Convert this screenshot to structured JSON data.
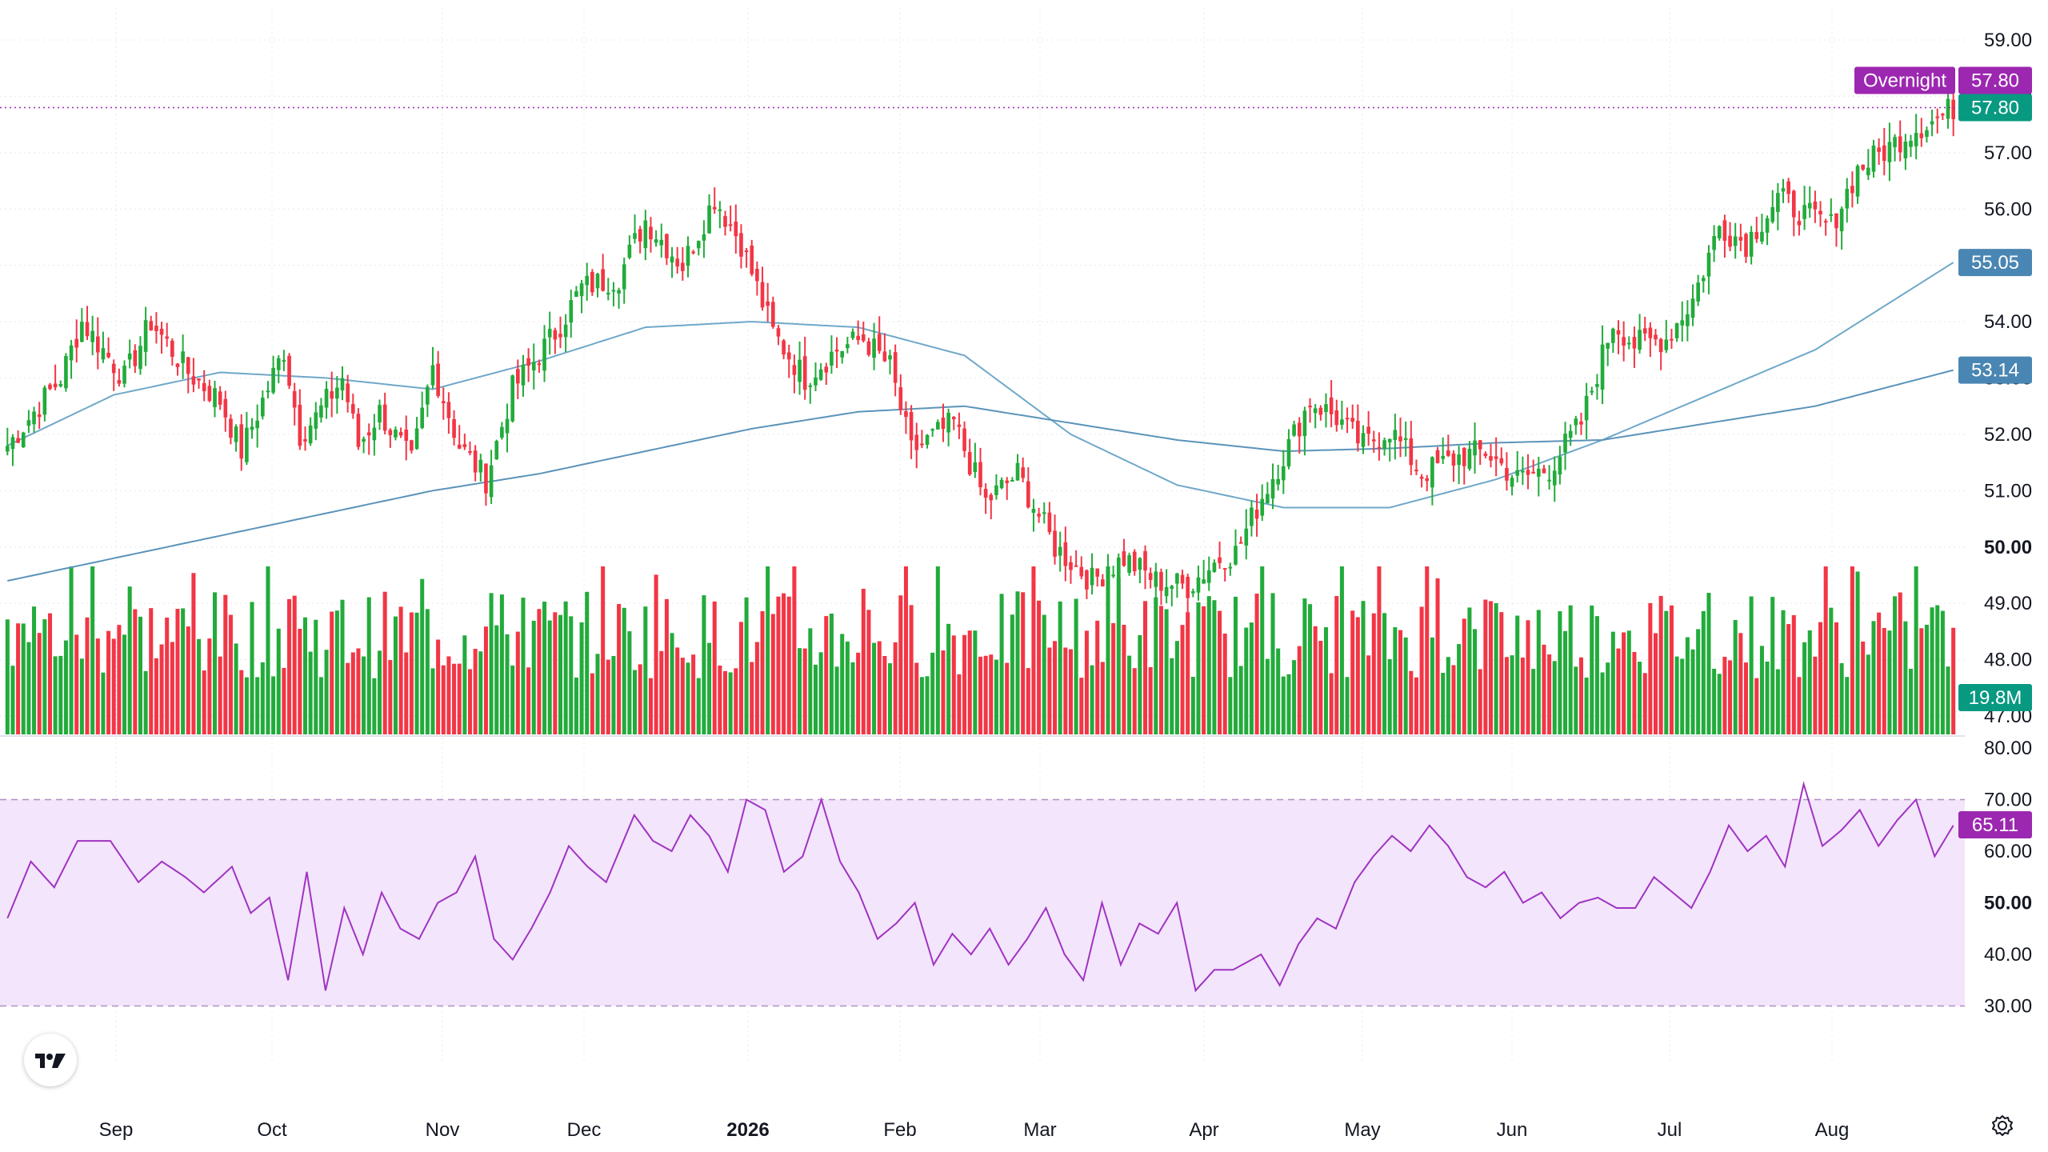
{
  "chart_data": {
    "type": "candlestick",
    "colors": {
      "up": "#22ab3b",
      "down": "#f23645",
      "ma_fast": "#6fa8c9",
      "ma_slow": "#5b93ba",
      "rsi_line": "#a033c2",
      "rsi_band": "#f3e5fb",
      "overnight_tag": "#9c27b0",
      "price_tag": "#089981",
      "ma_tag": "#4a86b3",
      "volume_tag": "#089981",
      "rsi_tag": "#9c27b0"
    },
    "price_axis": {
      "min": 47,
      "max": 59,
      "ticks": [
        "59.00",
        "58.00",
        "57.00",
        "56.00",
        "55.00",
        "54.00",
        "53.00",
        "52.00",
        "51.00",
        "50.00",
        "49.00",
        "48.00",
        "47.00"
      ]
    },
    "x_axis": {
      "labels": [
        {
          "text": "Sep",
          "bold": false
        },
        {
          "text": "Oct",
          "bold": false
        },
        {
          "text": "Nov",
          "bold": false
        },
        {
          "text": "Dec",
          "bold": false
        },
        {
          "text": "2026",
          "bold": true
        },
        {
          "text": "Feb",
          "bold": false
        },
        {
          "text": "Mar",
          "bold": false
        },
        {
          "text": "Apr",
          "bold": false
        },
        {
          "text": "May",
          "bold": false
        },
        {
          "text": "Jun",
          "bold": false
        },
        {
          "text": "Jul",
          "bold": false
        },
        {
          "text": "Aug",
          "bold": false
        }
      ]
    },
    "key_prices": [
      [
        0,
        51.8
      ],
      [
        10,
        53.0
      ],
      [
        14,
        54.0
      ],
      [
        22,
        53.0
      ],
      [
        27,
        54.0
      ],
      [
        34,
        53.1
      ],
      [
        40,
        52.6
      ],
      [
        44,
        51.7
      ],
      [
        52,
        53.5
      ],
      [
        55,
        52.0
      ],
      [
        58,
        52.3
      ],
      [
        63,
        53.0
      ],
      [
        66,
        51.8
      ],
      [
        70,
        52.4
      ],
      [
        76,
        51.5
      ],
      [
        80,
        53.2
      ],
      [
        85,
        51.8
      ],
      [
        90,
        51.2
      ],
      [
        95,
        52.8
      ],
      [
        103,
        53.8
      ],
      [
        108,
        54.6
      ],
      [
        115,
        54.8
      ],
      [
        120,
        55.8
      ],
      [
        127,
        55.0
      ],
      [
        133,
        56.2
      ],
      [
        138,
        55.4
      ],
      [
        144,
        53.8
      ],
      [
        150,
        53.0
      ],
      [
        156,
        53.5
      ],
      [
        161,
        53.7
      ],
      [
        166,
        53.2
      ],
      [
        170,
        51.7
      ],
      [
        178,
        52.2
      ],
      [
        184,
        50.8
      ],
      [
        190,
        51.3
      ],
      [
        197,
        50.0
      ],
      [
        204,
        49.4
      ],
      [
        210,
        49.8
      ],
      [
        216,
        49.4
      ],
      [
        222,
        49.3
      ],
      [
        228,
        49.8
      ],
      [
        231,
        49.9
      ],
      [
        236,
        50.9
      ],
      [
        241,
        51.8
      ],
      [
        245,
        52.6
      ],
      [
        250,
        52.3
      ],
      [
        255,
        51.8
      ],
      [
        260,
        52.1
      ],
      [
        266,
        51.3
      ],
      [
        273,
        51.6
      ],
      [
        278,
        51.7
      ],
      [
        284,
        51.2
      ],
      [
        290,
        51.4
      ],
      [
        296,
        52.2
      ],
      [
        302,
        54.0
      ],
      [
        306,
        53.6
      ],
      [
        312,
        53.7
      ],
      [
        317,
        54.4
      ],
      [
        322,
        55.7
      ],
      [
        327,
        55.4
      ],
      [
        333,
        56.2
      ],
      [
        338,
        55.9
      ],
      [
        343,
        55.7
      ],
      [
        348,
        56.7
      ],
      [
        354,
        57.1
      ],
      [
        358,
        57.4
      ],
      [
        363,
        57.6
      ],
      [
        366,
        57.8
      ]
    ],
    "series": [
      {
        "name": "",
        "kind": "moving_average_fast",
        "x": [
          0,
          20,
          40,
          60,
          80,
          100,
          120,
          140,
          160,
          180,
          200,
          220,
          240,
          260,
          280,
          300,
          320,
          340,
          366
        ],
        "y": [
          51.8,
          52.7,
          53.1,
          53.0,
          52.8,
          53.3,
          53.9,
          54.0,
          53.9,
          53.4,
          52.0,
          51.1,
          50.7,
          50.7,
          51.2,
          51.9,
          52.7,
          53.5,
          55.05
        ]
      },
      {
        "name": "",
        "kind": "moving_average_slow",
        "x": [
          0,
          20,
          40,
          60,
          80,
          100,
          120,
          140,
          160,
          180,
          200,
          220,
          240,
          260,
          280,
          300,
          320,
          340,
          366
        ],
        "y": [
          49.4,
          49.8,
          50.2,
          50.6,
          51.0,
          51.3,
          51.7,
          52.1,
          52.4,
          52.5,
          52.2,
          51.9,
          51.7,
          51.75,
          51.85,
          51.9,
          52.2,
          52.5,
          53.14
        ]
      }
    ],
    "volume": {
      "unit": "M",
      "max_bar_height_fraction_of_pane": 1,
      "last": "19.8M"
    },
    "rsi": {
      "min": 20,
      "max": 80,
      "upper_band": 70,
      "lower_band": 30,
      "ticks": [
        "80.00",
        "70.00",
        "60.00",
        "50.00",
        "40.00",
        "30.00"
      ],
      "key_values": [
        [
          0,
          47
        ],
        [
          5,
          58
        ],
        [
          10,
          53
        ],
        [
          15,
          62
        ],
        [
          22,
          62
        ],
        [
          28,
          54
        ],
        [
          33,
          58
        ],
        [
          38,
          55
        ],
        [
          42,
          52
        ],
        [
          48,
          57
        ],
        [
          52,
          48
        ],
        [
          56,
          51
        ],
        [
          60,
          35
        ],
        [
          64,
          56
        ],
        [
          68,
          33
        ],
        [
          72,
          49
        ],
        [
          76,
          40
        ],
        [
          80,
          52
        ],
        [
          84,
          45
        ],
        [
          88,
          43
        ],
        [
          92,
          50
        ],
        [
          96,
          52
        ],
        [
          100,
          59
        ],
        [
          104,
          43
        ],
        [
          108,
          39
        ],
        [
          112,
          45
        ],
        [
          116,
          52
        ],
        [
          120,
          61
        ],
        [
          124,
          57
        ],
        [
          128,
          54
        ],
        [
          134,
          67
        ],
        [
          138,
          62
        ],
        [
          142,
          60
        ],
        [
          146,
          67
        ],
        [
          150,
          63
        ],
        [
          154,
          56
        ],
        [
          158,
          70
        ],
        [
          162,
          68
        ],
        [
          166,
          56
        ],
        [
          170,
          59
        ],
        [
          174,
          70
        ],
        [
          178,
          58
        ],
        [
          182,
          52
        ],
        [
          186,
          43
        ],
        [
          190,
          46
        ],
        [
          194,
          50
        ],
        [
          198,
          38
        ],
        [
          202,
          44
        ],
        [
          206,
          40
        ],
        [
          210,
          45
        ],
        [
          214,
          38
        ],
        [
          218,
          43
        ],
        [
          222,
          49
        ],
        [
          226,
          40
        ],
        [
          230,
          35
        ],
        [
          234,
          50
        ],
        [
          238,
          38
        ],
        [
          242,
          46
        ],
        [
          246,
          44
        ],
        [
          250,
          50
        ],
        [
          254,
          33
        ],
        [
          258,
          37
        ],
        [
          262,
          37
        ],
        [
          268,
          40
        ],
        [
          272,
          34
        ],
        [
          276,
          42
        ],
        [
          280,
          47
        ],
        [
          284,
          45
        ],
        [
          288,
          54
        ],
        [
          292,
          59
        ],
        [
          296,
          63
        ],
        [
          300,
          60
        ],
        [
          304,
          65
        ],
        [
          308,
          61
        ],
        [
          312,
          55
        ],
        [
          316,
          53
        ],
        [
          320,
          56
        ],
        [
          324,
          50
        ],
        [
          328,
          52
        ],
        [
          332,
          47
        ],
        [
          336,
          50
        ],
        [
          340,
          51
        ],
        [
          344,
          49
        ],
        [
          348,
          49
        ],
        [
          352,
          55
        ],
        [
          356,
          52
        ],
        [
          360,
          49
        ],
        [
          364,
          56
        ],
        [
          368,
          65
        ],
        [
          372,
          60
        ],
        [
          376,
          63
        ],
        [
          380,
          57
        ],
        [
          384,
          73
        ],
        [
          388,
          61
        ],
        [
          392,
          64
        ],
        [
          396,
          68
        ],
        [
          400,
          61
        ],
        [
          404,
          66
        ],
        [
          408,
          70
        ],
        [
          412,
          59
        ],
        [
          416,
          65
        ]
      ],
      "last": "65.11"
    },
    "tags": {
      "overnight_label": "Overnight",
      "overnight_price": "57.80",
      "last_price": "57.80",
      "ma_fast_value": "55.05",
      "ma_slow_value": "53.14",
      "volume_value": "19.8M",
      "rsi_value": "65.11"
    }
  }
}
